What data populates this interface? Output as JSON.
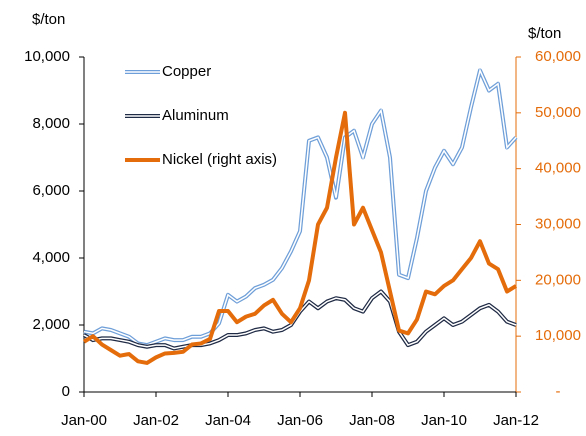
{
  "chart_data": {
    "type": "line",
    "ylabel": "$/ton",
    "y2label": "$/ton",
    "x": [
      2000,
      2000.25,
      2000.5,
      2000.75,
      2001,
      2001.25,
      2001.5,
      2001.75,
      2002,
      2002.25,
      2002.5,
      2002.75,
      2003,
      2003.25,
      2003.5,
      2003.75,
      2004,
      2004.25,
      2004.5,
      2004.75,
      2005,
      2005.25,
      2005.5,
      2005.75,
      2006,
      2006.25,
      2006.5,
      2006.75,
      2007,
      2007.25,
      2007.5,
      2007.75,
      2008,
      2008.25,
      2008.5,
      2008.75,
      2009,
      2009.25,
      2009.5,
      2009.75,
      2010,
      2010.25,
      2010.5,
      2010.75,
      2011,
      2011.25,
      2011.5,
      2011.75,
      2012
    ],
    "xlim": [
      2000,
      2012
    ],
    "xticks": [
      {
        "value": 2000,
        "label": "Jan-00"
      },
      {
        "value": 2002,
        "label": "Jan-02"
      },
      {
        "value": 2004,
        "label": "Jan-04"
      },
      {
        "value": 2006,
        "label": "Jan-06"
      },
      {
        "value": 2008,
        "label": "Jan-08"
      },
      {
        "value": 2010,
        "label": "Jan-10"
      },
      {
        "value": 2012,
        "label": "Jan-12"
      }
    ],
    "ylim": [
      0,
      10000
    ],
    "yticks": [
      0,
      {
        "value": 2000,
        "label": "2,000"
      },
      {
        "value": 4000,
        "label": "4,000"
      },
      {
        "value": 6000,
        "label": "6,000"
      },
      {
        "value": 8000,
        "label": "8,000"
      },
      {
        "value": 10000,
        "label": "10,000"
      }
    ],
    "y2lim": [
      0,
      60000
    ],
    "y2ticks": [
      {
        "value": 0,
        "label": "-"
      },
      {
        "value": 10000,
        "label": "10,000"
      },
      {
        "value": 20000,
        "label": "20,000"
      },
      {
        "value": 30000,
        "label": "30,000"
      },
      {
        "value": 40000,
        "label": "40,000"
      },
      {
        "value": 50000,
        "label": "50,000"
      },
      {
        "value": 60000,
        "label": "60,000"
      }
    ],
    "legend": "upper left",
    "series": [
      {
        "name": "Copper",
        "color": "#6f9fd8",
        "values": [
          1800,
          1750,
          1900,
          1850,
          1750,
          1650,
          1450,
          1400,
          1500,
          1600,
          1550,
          1550,
          1650,
          1650,
          1750,
          2050,
          2900,
          2700,
          2850,
          3100,
          3200,
          3350,
          3700,
          4200,
          4800,
          7500,
          7600,
          7000,
          5800,
          7600,
          7800,
          7000,
          8000,
          8400,
          7000,
          3500,
          3400,
          4600,
          6000,
          6700,
          7200,
          6800,
          7300,
          8500,
          9600,
          9000,
          9200,
          7300,
          7600
        ]
      },
      {
        "name": "Aluminum",
        "color": "#1f2a44",
        "values": [
          1700,
          1550,
          1600,
          1600,
          1550,
          1500,
          1400,
          1350,
          1400,
          1400,
          1300,
          1350,
          1400,
          1400,
          1450,
          1550,
          1700,
          1700,
          1750,
          1850,
          1900,
          1800,
          1850,
          2000,
          2400,
          2700,
          2500,
          2700,
          2800,
          2750,
          2500,
          2400,
          2800,
          3000,
          2700,
          1800,
          1400,
          1500,
          1800,
          2000,
          2200,
          2000,
          2100,
          2300,
          2500,
          2600,
          2400,
          2100,
          2000
        ]
      },
      {
        "name": "Nickel (right axis)",
        "color": "#e46c0a",
        "axis": "y2",
        "values": [
          9000,
          10000,
          8500,
          7500,
          6500,
          6800,
          5500,
          5200,
          6200,
          6900,
          7000,
          7200,
          8500,
          8700,
          9500,
          14500,
          14500,
          12500,
          13500,
          14000,
          15500,
          16500,
          14000,
          12500,
          15000,
          20000,
          30000,
          33000,
          42000,
          50000,
          30000,
          33000,
          29000,
          25000,
          18000,
          11000,
          10500,
          13000,
          18000,
          17500,
          19000,
          20000,
          22000,
          24000,
          27000,
          23000,
          22000,
          18000,
          19000
        ]
      }
    ]
  }
}
